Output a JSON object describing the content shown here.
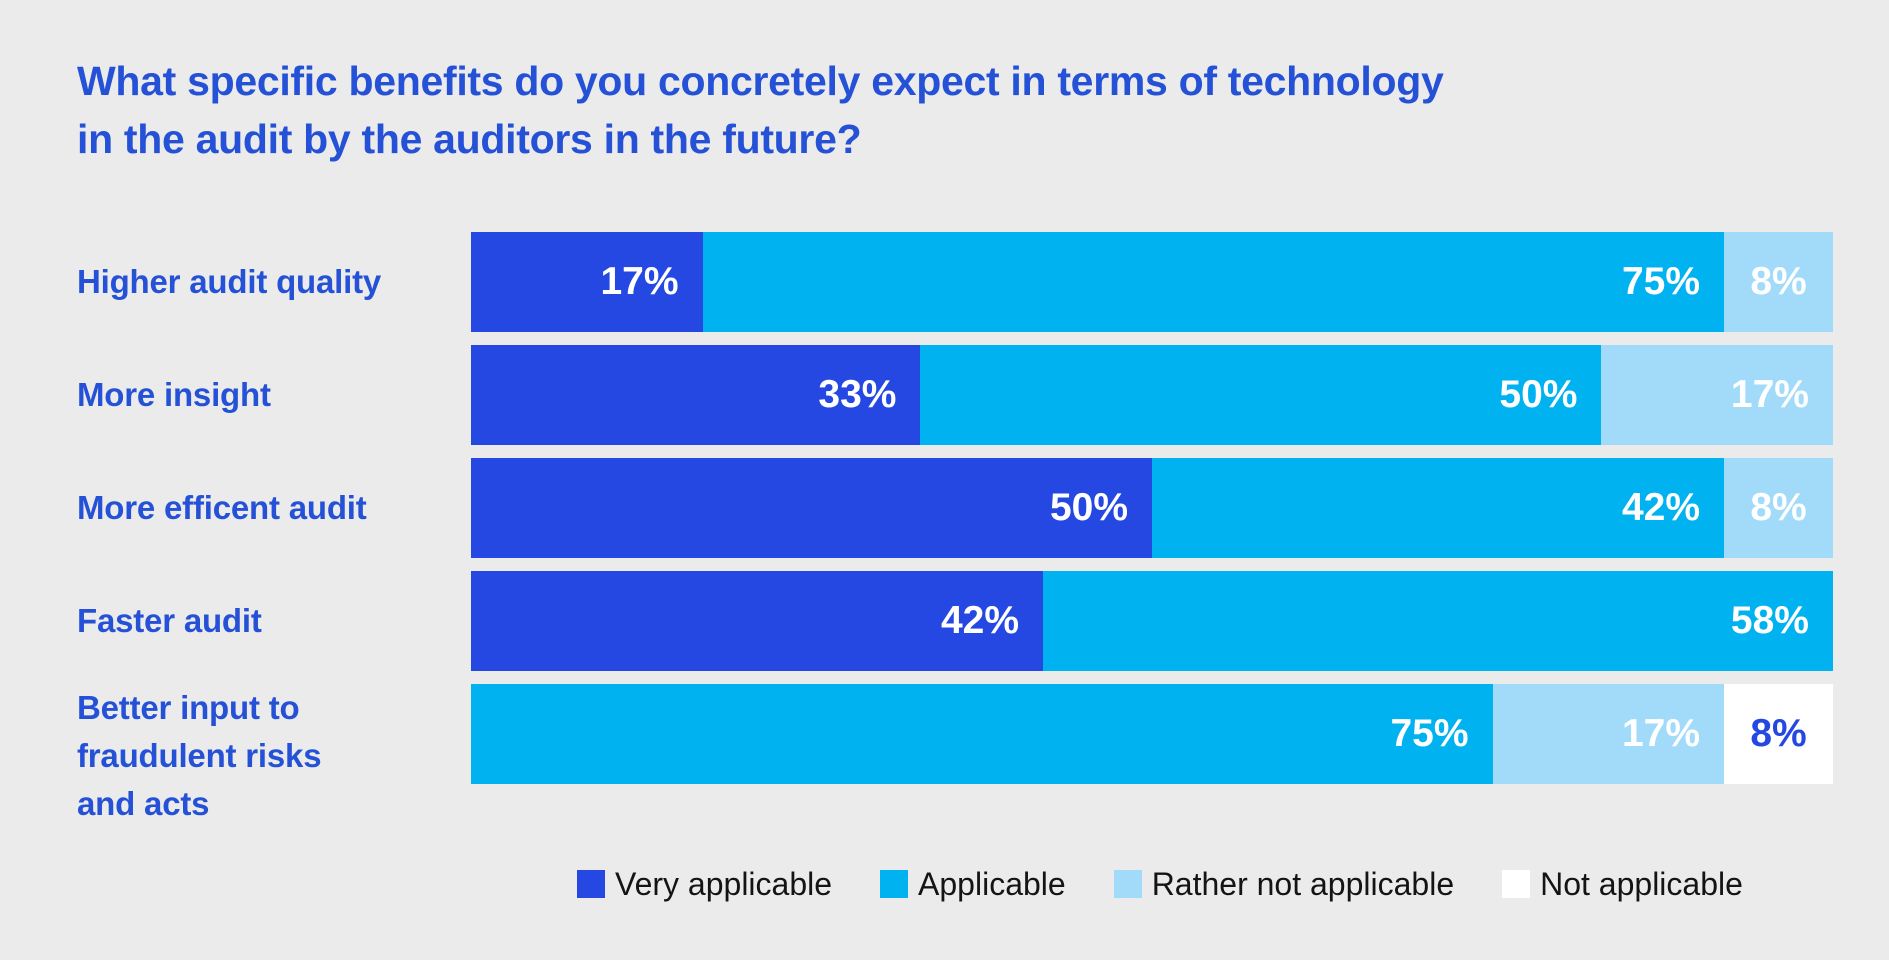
{
  "title": {
    "line1": "What specific benefits do you concretely expect in terms of technology",
    "line2": "in the audit by the auditors in the future?"
  },
  "colors": {
    "background": "#ebebeb",
    "title_text": "#2551d7",
    "category_label_text": "#2551d7",
    "legend_text": "#141414",
    "very_applicable": "#2448e1",
    "applicable": "#00b2ef",
    "rather_not_applicable": "#a1dbf9",
    "not_applicable": "#ffffff",
    "value_label_on_colored_bar": "#ffffff",
    "value_label_on_white_bar": "#2448e1"
  },
  "chart_data": {
    "type": "bar",
    "orientation": "horizontal",
    "stacked": true,
    "unit": "%",
    "title": "What specific benefits do you concretely expect in terms of technology in the audit by the auditors in the future?",
    "categories": [
      "Higher audit quality",
      "More insight",
      "More efficent audit",
      "Faster audit",
      "Better input to fraudulent risks and acts"
    ],
    "categories_display": [
      "Higher audit quality",
      "More insight",
      "More efficent audit",
      "Faster audit",
      "Better input to\nfraudulent risks\nand acts"
    ],
    "series": [
      {
        "name": "Very applicable",
        "color": "#2448e1",
        "value_label_color": "#ffffff",
        "values": [
          17,
          33,
          50,
          42,
          0
        ]
      },
      {
        "name": "Applicable",
        "color": "#00b2ef",
        "value_label_color": "#ffffff",
        "values": [
          75,
          50,
          42,
          58,
          75
        ]
      },
      {
        "name": "Rather not applicable",
        "color": "#a1dbf9",
        "value_label_color": "#ffffff",
        "values": [
          8,
          17,
          8,
          0,
          17
        ]
      },
      {
        "name": "Not applicable",
        "color": "#ffffff",
        "value_label_color": "#2448e1",
        "values": [
          0,
          0,
          0,
          0,
          8
        ]
      }
    ],
    "xlim": [
      0,
      100
    ],
    "grid": false,
    "value_labels": "inside-right",
    "value_labels_centered_at_or_below": 8,
    "legend_position": "bottom"
  }
}
